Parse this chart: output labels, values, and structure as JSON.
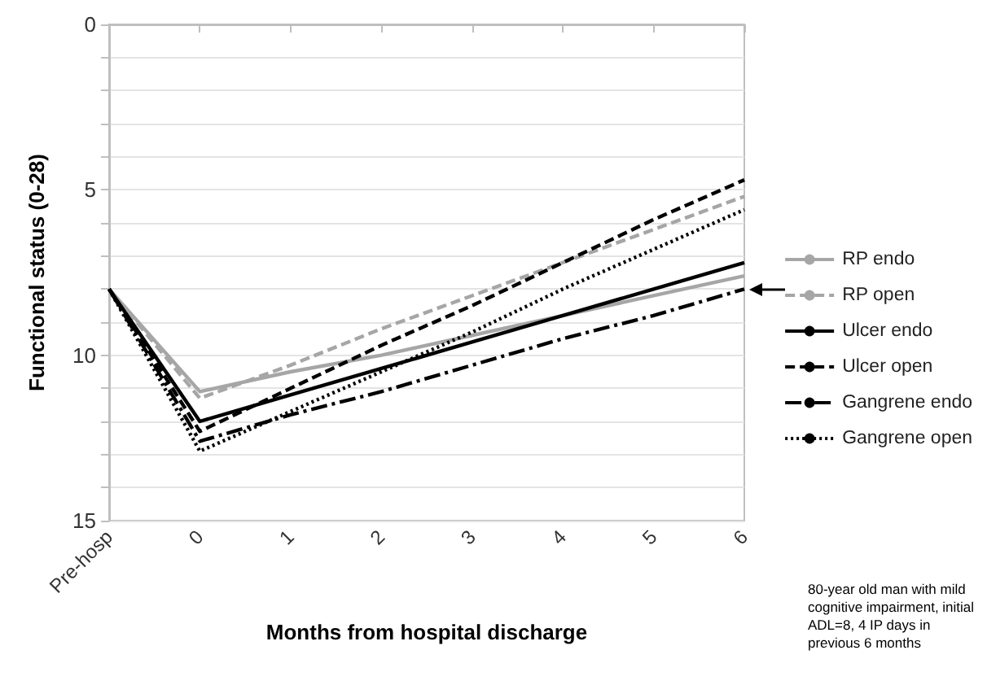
{
  "chart_data": {
    "type": "line",
    "xlabel": "Months from hospital discharge",
    "ylabel": "Functional status (0-28)",
    "categories": [
      "Pre-hosp",
      "0",
      "1",
      "2",
      "3",
      "4",
      "5",
      "6"
    ],
    "ylim": [
      15,
      0
    ],
    "yticks": [
      0,
      {
        "value": 1,
        "label": null
      },
      {
        "value": 2,
        "label": null
      },
      {
        "value": 3,
        "label": null
      },
      {
        "value": 4,
        "label": null
      },
      5,
      {
        "value": 6,
        "label": null
      },
      {
        "value": 7,
        "label": null
      },
      {
        "value": 8,
        "label": null
      },
      {
        "value": 9,
        "label": null
      },
      10,
      {
        "value": 11,
        "label": null
      },
      {
        "value": 12,
        "label": null
      },
      {
        "value": 13,
        "label": null
      },
      {
        "value": 14,
        "label": null
      },
      15
    ],
    "grid": "y",
    "legend": "right",
    "marker": "none",
    "series": [
      {
        "name": "RP endo",
        "color": "#a6a6a6",
        "line_style": "solid",
        "values": [
          8,
          11.1,
          10.5,
          10.0,
          9.4,
          8.8,
          8.2,
          7.6
        ]
      },
      {
        "name": "RP open",
        "color": "#a6a6a6",
        "line_style": "dashed",
        "values": [
          8,
          11.3,
          10.3,
          9.2,
          8.2,
          7.2,
          6.2,
          5.2
        ]
      },
      {
        "name": "Ulcer endo",
        "color": "#000000",
        "line_style": "solid",
        "values": [
          8,
          12.0,
          11.2,
          10.4,
          9.6,
          8.8,
          8.0,
          7.2
        ]
      },
      {
        "name": "Ulcer open",
        "color": "#000000",
        "line_style": "dashed",
        "values": [
          8,
          12.3,
          11.0,
          9.7,
          8.5,
          7.2,
          5.9,
          4.7
        ]
      },
      {
        "name": "Gangrene endo",
        "color": "#000000",
        "line_style": "dashdot",
        "values": [
          8,
          12.6,
          11.8,
          11.1,
          10.3,
          9.5,
          8.8,
          8.0
        ]
      },
      {
        "name": "Gangrene open",
        "color": "#000000",
        "line_style": "dotted",
        "values": [
          8,
          12.9,
          11.7,
          10.5,
          9.3,
          8.0,
          6.8,
          5.6
        ]
      }
    ],
    "annotations": [
      "80-year old man with mild cognitive impairment, initial ADL=8, 4 IP days in previous 6 months"
    ]
  }
}
